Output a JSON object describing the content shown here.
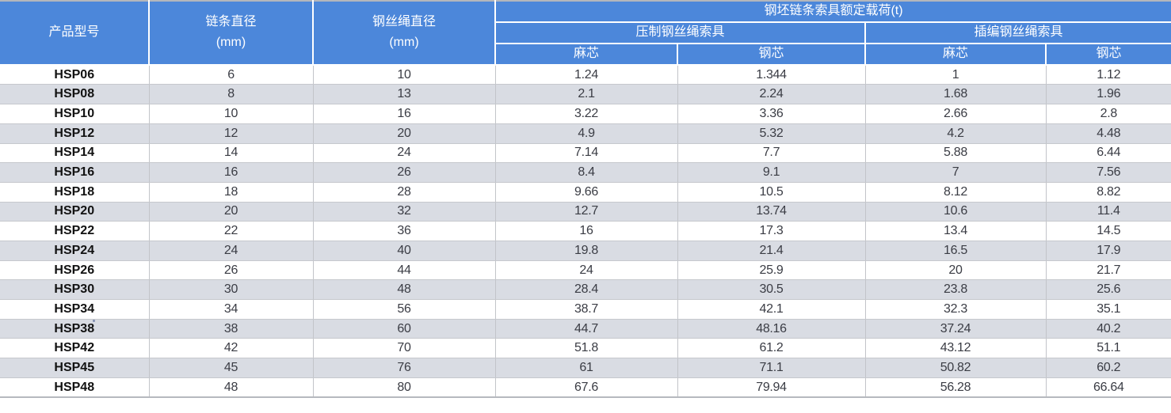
{
  "colors": {
    "header_bg": "#4C87DA",
    "header_text": "#FFFFFF",
    "stripe_bg": "#D9DCE3",
    "row_bg": "#FFFFFF",
    "grid_line": "#C6C8CD",
    "outer_edge": "#B3B6BC",
    "data_text": "#3A3C44",
    "model_text": "#121212"
  },
  "table": {
    "header": {
      "product_model": "产品型号",
      "chain_diameter_title": "链条直径",
      "chain_diameter_unit": "(mm)",
      "rope_diameter_title": "钢丝绳直径",
      "rope_diameter_unit": "(mm)",
      "rated_load_group": "钢坯链条索具额定载荷(t)",
      "pressed_group": "压制钢丝绳索具",
      "braided_group": "插编钢丝绳索具",
      "pressed_hemp_core": "麻芯",
      "pressed_steel_core": "钢芯",
      "braided_hemp_core": "麻芯",
      "braided_steel_core": "钢芯"
    },
    "rows": [
      {
        "model": "HSP06",
        "chain": "6",
        "rope": "10",
        "pressed_hemp": "1.24",
        "pressed_steel": "1.344",
        "braided_hemp": "1",
        "braided_steel": "1.12"
      },
      {
        "model": "HSP08",
        "chain": "8",
        "rope": "13",
        "pressed_hemp": "2.1",
        "pressed_steel": "2.24",
        "braided_hemp": "1.68",
        "braided_steel": "1.96"
      },
      {
        "model": "HSP10",
        "chain": "10",
        "rope": "16",
        "pressed_hemp": "3.22",
        "pressed_steel": "3.36",
        "braided_hemp": "2.66",
        "braided_steel": "2.8"
      },
      {
        "model": "HSP12",
        "chain": "12",
        "rope": "20",
        "pressed_hemp": "4.9",
        "pressed_steel": "5.32",
        "braided_hemp": "4.2",
        "braided_steel": "4.48"
      },
      {
        "model": "HSP14",
        "chain": "14",
        "rope": "24",
        "pressed_hemp": "7.14",
        "pressed_steel": "7.7",
        "braided_hemp": "5.88",
        "braided_steel": "6.44"
      },
      {
        "model": "HSP16",
        "chain": "16",
        "rope": "26",
        "pressed_hemp": "8.4",
        "pressed_steel": "9.1",
        "braided_hemp": "7",
        "braided_steel": "7.56"
      },
      {
        "model": "HSP18",
        "chain": "18",
        "rope": "28",
        "pressed_hemp": "9.66",
        "pressed_steel": "10.5",
        "braided_hemp": "8.12",
        "braided_steel": "8.82"
      },
      {
        "model": "HSP20",
        "chain": "20",
        "rope": "32",
        "pressed_hemp": "12.7",
        "pressed_steel": "13.74",
        "braided_hemp": "10.6",
        "braided_steel": "11.4"
      },
      {
        "model": "HSP22",
        "chain": "22",
        "rope": "36",
        "pressed_hemp": "16",
        "pressed_steel": "17.3",
        "braided_hemp": "13.4",
        "braided_steel": "14.5"
      },
      {
        "model": "HSP24",
        "chain": "24",
        "rope": "40",
        "pressed_hemp": "19.8",
        "pressed_steel": "21.4",
        "braided_hemp": "16.5",
        "braided_steel": "17.9"
      },
      {
        "model": "HSP26",
        "chain": "26",
        "rope": "44",
        "pressed_hemp": "24",
        "pressed_steel": "25.9",
        "braided_hemp": "20",
        "braided_steel": "21.7"
      },
      {
        "model": "HSP30",
        "chain": "30",
        "rope": "48",
        "pressed_hemp": "28.4",
        "pressed_steel": "30.5",
        "braided_hemp": "23.8",
        "braided_steel": "25.6"
      },
      {
        "model": "HSP34",
        "chain": "34",
        "rope": "56",
        "pressed_hemp": "38.7",
        "pressed_steel": "42.1",
        "braided_hemp": "32.3",
        "braided_steel": "35.1"
      },
      {
        "model": "HSP38",
        "chain": "38",
        "rope": "60",
        "pressed_hemp": "44.7",
        "pressed_steel": "48.16",
        "braided_hemp": "37.24",
        "braided_steel": "40.2"
      },
      {
        "model": "HSP42",
        "chain": "42",
        "rope": "70",
        "pressed_hemp": "51.8",
        "pressed_steel": "61.2",
        "braided_hemp": "43.12",
        "braided_steel": "51.1"
      },
      {
        "model": "HSP45",
        "chain": "45",
        "rope": "76",
        "pressed_hemp": "61",
        "pressed_steel": "71.1",
        "braided_hemp": "50.82",
        "braided_steel": "60.2"
      },
      {
        "model": "HSP48",
        "chain": "48",
        "rope": "80",
        "pressed_hemp": "67.6",
        "pressed_steel": "79.94",
        "braided_hemp": "56.28",
        "braided_steel": "66.64"
      }
    ]
  }
}
